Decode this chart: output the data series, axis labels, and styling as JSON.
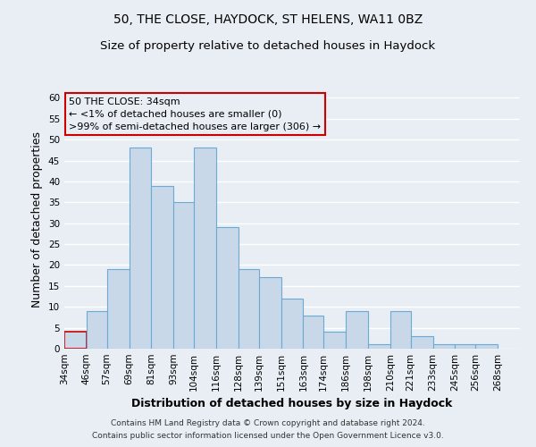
{
  "title1": "50, THE CLOSE, HAYDOCK, ST HELENS, WA11 0BZ",
  "title2": "Size of property relative to detached houses in Haydock",
  "xlabel": "Distribution of detached houses by size in Haydock",
  "ylabel": "Number of detached properties",
  "footnote1": "Contains HM Land Registry data © Crown copyright and database right 2024.",
  "footnote2": "Contains public sector information licensed under the Open Government Licence v3.0.",
  "bar_left_edges": [
    34,
    46,
    57,
    69,
    81,
    93,
    104,
    116,
    128,
    139,
    151,
    163,
    174,
    186,
    198,
    210,
    221,
    233,
    245,
    256
  ],
  "bar_widths": [
    12,
    11,
    12,
    12,
    12,
    11,
    12,
    12,
    11,
    12,
    12,
    11,
    12,
    12,
    12,
    11,
    12,
    12,
    11,
    12
  ],
  "bar_heights": [
    4,
    9,
    19,
    48,
    39,
    35,
    48,
    29,
    19,
    17,
    12,
    8,
    4,
    9,
    1,
    9,
    3,
    1,
    1,
    1
  ],
  "bar_color": "#c8d8e8",
  "bar_edge_color": "#6aaad4",
  "highlight_bar_index": 0,
  "highlight_bar_edge_color": "#cc0000",
  "annotation_box_text": "50 THE CLOSE: 34sqm\n← <1% of detached houses are smaller (0)\n>99% of semi-detached houses are larger (306) →",
  "tick_labels": [
    "34sqm",
    "46sqm",
    "57sqm",
    "69sqm",
    "81sqm",
    "93sqm",
    "104sqm",
    "116sqm",
    "128sqm",
    "139sqm",
    "151sqm",
    "163sqm",
    "174sqm",
    "186sqm",
    "198sqm",
    "210sqm",
    "221sqm",
    "233sqm",
    "245sqm",
    "256sqm",
    "268sqm"
  ],
  "tick_positions": [
    34,
    46,
    57,
    69,
    81,
    93,
    104,
    116,
    128,
    139,
    151,
    163,
    174,
    186,
    198,
    210,
    221,
    233,
    245,
    256,
    268
  ],
  "ylim": [
    0,
    62
  ],
  "xlim": [
    34,
    280
  ],
  "yticks": [
    0,
    5,
    10,
    15,
    20,
    25,
    30,
    35,
    40,
    45,
    50,
    55,
    60
  ],
  "background_color": "#e8eef4",
  "grid_color": "#ffffff",
  "title_fontsize": 10,
  "subtitle_fontsize": 9.5,
  "axis_label_fontsize": 9,
  "tick_fontsize": 7.5,
  "footnote_fontsize": 6.5
}
